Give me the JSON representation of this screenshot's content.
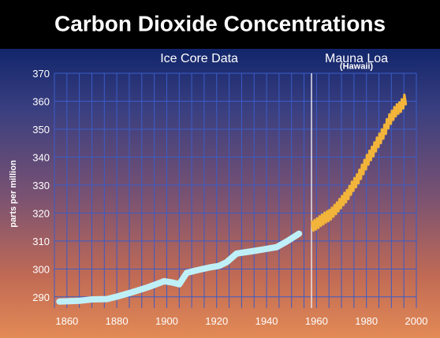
{
  "colors": {
    "title_bar": "#000000",
    "grid": "#3a5cc8",
    "ice_core_line": "#bff0f8",
    "mauna_loa_line": "#f2b53a",
    "text": "#ffffff",
    "tick_text": "#ffffff"
  },
  "chart_data": {
    "type": "line",
    "title": "Carbon Dioxide Concentrations",
    "ylabel": "parts per million",
    "xlabel": "",
    "xlim": [
      1855,
      2000
    ],
    "ylim": [
      286,
      370
    ],
    "x_ticks": [
      1860,
      1880,
      1900,
      1920,
      1940,
      1960,
      1980,
      2000
    ],
    "y_ticks": [
      290,
      300,
      310,
      320,
      330,
      340,
      350,
      360,
      370
    ],
    "grid": true,
    "divider_x": 1958,
    "annotations": [
      {
        "text": "Ice Core Data",
        "x": 1913,
        "y": 374
      },
      {
        "text": "Mauna Loa",
        "x": 1976,
        "y": 374
      },
      {
        "text": "(Hawaii)",
        "x": 1976,
        "y": 371.5
      }
    ],
    "series": [
      {
        "name": "Ice Core Data",
        "x": [
          1857,
          1865,
          1870,
          1876,
          1880,
          1886,
          1892,
          1896,
          1899,
          1902,
          1905,
          1908,
          1912,
          1917,
          1921,
          1924,
          1928,
          1934,
          1938,
          1944,
          1948,
          1953
        ],
        "y": [
          288.3,
          288.6,
          289.1,
          289.2,
          290.1,
          291.6,
          293.3,
          294.6,
          295.6,
          295.2,
          294.5,
          298.6,
          299.5,
          300.5,
          301.1,
          302.4,
          305.5,
          306.3,
          306.9,
          307.8,
          309.8,
          312.6
        ]
      },
      {
        "name": "Mauna Loa",
        "x": [
          1958.2,
          1958.5,
          1958.8,
          1959.2,
          1959.5,
          1959.8,
          1960.2,
          1960.5,
          1960.8,
          1961.2,
          1961.5,
          1961.8,
          1962.2,
          1962.5,
          1962.8,
          1963.2,
          1963.5,
          1963.8,
          1964.2,
          1964.5,
          1964.8,
          1965.2,
          1965.5,
          1965.8,
          1966.2,
          1966.5,
          1966.8,
          1967.2,
          1967.5,
          1967.8,
          1968.2,
          1968.5,
          1968.8,
          1969.2,
          1969.5,
          1969.8,
          1970.2,
          1970.5,
          1970.8,
          1971.2,
          1971.5,
          1971.8,
          1972.2,
          1972.5,
          1972.8,
          1973.2,
          1973.5,
          1973.8,
          1974.2,
          1974.5,
          1974.8,
          1975.2,
          1975.5,
          1975.8,
          1976.2,
          1976.5,
          1976.8,
          1977.2,
          1977.5,
          1977.8,
          1978.2,
          1978.5,
          1978.8,
          1979.2,
          1979.5,
          1979.8,
          1980.2,
          1980.5,
          1980.8,
          1981.2,
          1981.5,
          1981.8,
          1982.2,
          1982.5,
          1982.8,
          1983.2,
          1983.5,
          1983.8,
          1984.2,
          1984.5,
          1984.8,
          1985.2,
          1985.5,
          1985.8,
          1986.2,
          1986.5,
          1986.8,
          1987.2,
          1987.5,
          1987.8,
          1988.2,
          1988.5,
          1988.8,
          1989.2,
          1989.5,
          1989.8,
          1990.2,
          1990.5,
          1990.8,
          1991.2,
          1991.5,
          1991.8,
          1992.2,
          1992.5,
          1992.8,
          1993.2,
          1993.5,
          1993.8,
          1994.2,
          1994.5,
          1994.8,
          1995.2,
          1995.5,
          1995.8
        ],
        "y": [
          316.9,
          314.2,
          313.7,
          317.5,
          315.5,
          314.1,
          318.1,
          316.1,
          314.7,
          318.8,
          316.8,
          315.4,
          319.5,
          317.6,
          316.0,
          320.1,
          318.2,
          316.6,
          320.6,
          318.6,
          317.1,
          321.1,
          319.3,
          317.7,
          321.9,
          320.3,
          318.7,
          322.9,
          321.2,
          319.6,
          323.8,
          322.1,
          320.6,
          325.0,
          323.3,
          321.7,
          326.1,
          324.4,
          322.8,
          327.2,
          325.6,
          323.8,
          328.2,
          326.6,
          325.0,
          329.7,
          328.2,
          326.5,
          331.2,
          329.5,
          327.9,
          332.5,
          330.9,
          329.2,
          333.8,
          332.2,
          330.6,
          335.5,
          333.9,
          332.2,
          337.3,
          335.6,
          333.9,
          339.0,
          337.3,
          335.6,
          340.8,
          339.0,
          337.3,
          342.3,
          340.6,
          338.9,
          343.7,
          342.0,
          340.3,
          345.3,
          343.7,
          342.0,
          347.0,
          345.3,
          343.6,
          348.4,
          346.7,
          345.0,
          349.9,
          348.3,
          346.6,
          351.6,
          350.0,
          348.3,
          353.6,
          352.0,
          350.3,
          355.3,
          353.6,
          351.9,
          356.6,
          355.0,
          353.3,
          357.9,
          356.3,
          354.6,
          358.9,
          357.2,
          355.5,
          359.6,
          357.9,
          356.2,
          360.7,
          359.1,
          357.4,
          362.3,
          360.6,
          358.9
        ]
      }
    ]
  }
}
